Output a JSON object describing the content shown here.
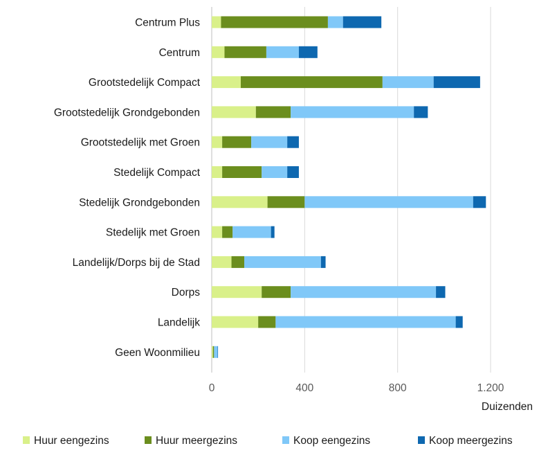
{
  "chart_data": {
    "type": "bar",
    "orientation": "horizontal",
    "stacked": true,
    "categories": [
      "Centrum Plus",
      "Centrum",
      "Grootstedelijk Compact",
      "Grootstedelijk Grondgebonden",
      "Grootstedelijk met Groen",
      "Stedelijk Compact",
      "Stedelijk Grondgebonden",
      "Stedelijk met Groen",
      "Landelijk/Dorps bij de Stad",
      "Dorps",
      "Landelijk",
      "Geen Woonmilieu"
    ],
    "series": [
      {
        "name": "Huur eengezins",
        "color": "#d9f08a",
        "values": [
          40,
          55,
          125,
          190,
          45,
          45,
          240,
          45,
          85,
          215,
          200,
          5
        ]
      },
      {
        "name": "Huur meergezins",
        "color": "#6b8e1e",
        "values": [
          460,
          180,
          610,
          150,
          125,
          170,
          160,
          45,
          55,
          125,
          75,
          5
        ]
      },
      {
        "name": "Koop eengezins",
        "color": "#80c8f8",
        "values": [
          65,
          140,
          220,
          530,
          155,
          110,
          725,
          165,
          330,
          625,
          775,
          15
        ]
      },
      {
        "name": "Koop meergezins",
        "color": "#0e68b0",
        "values": [
          165,
          80,
          200,
          60,
          50,
          50,
          55,
          15,
          20,
          40,
          30,
          2
        ]
      }
    ],
    "xlim": [
      0,
      1400
    ],
    "xticks": [
      0,
      400,
      800,
      1200
    ],
    "xtick_labels": [
      "0",
      "400",
      "800",
      "1.200"
    ],
    "xlabel": "Duizenden",
    "ylabel": "",
    "title": "",
    "grid": true,
    "legend_position": "bottom"
  }
}
